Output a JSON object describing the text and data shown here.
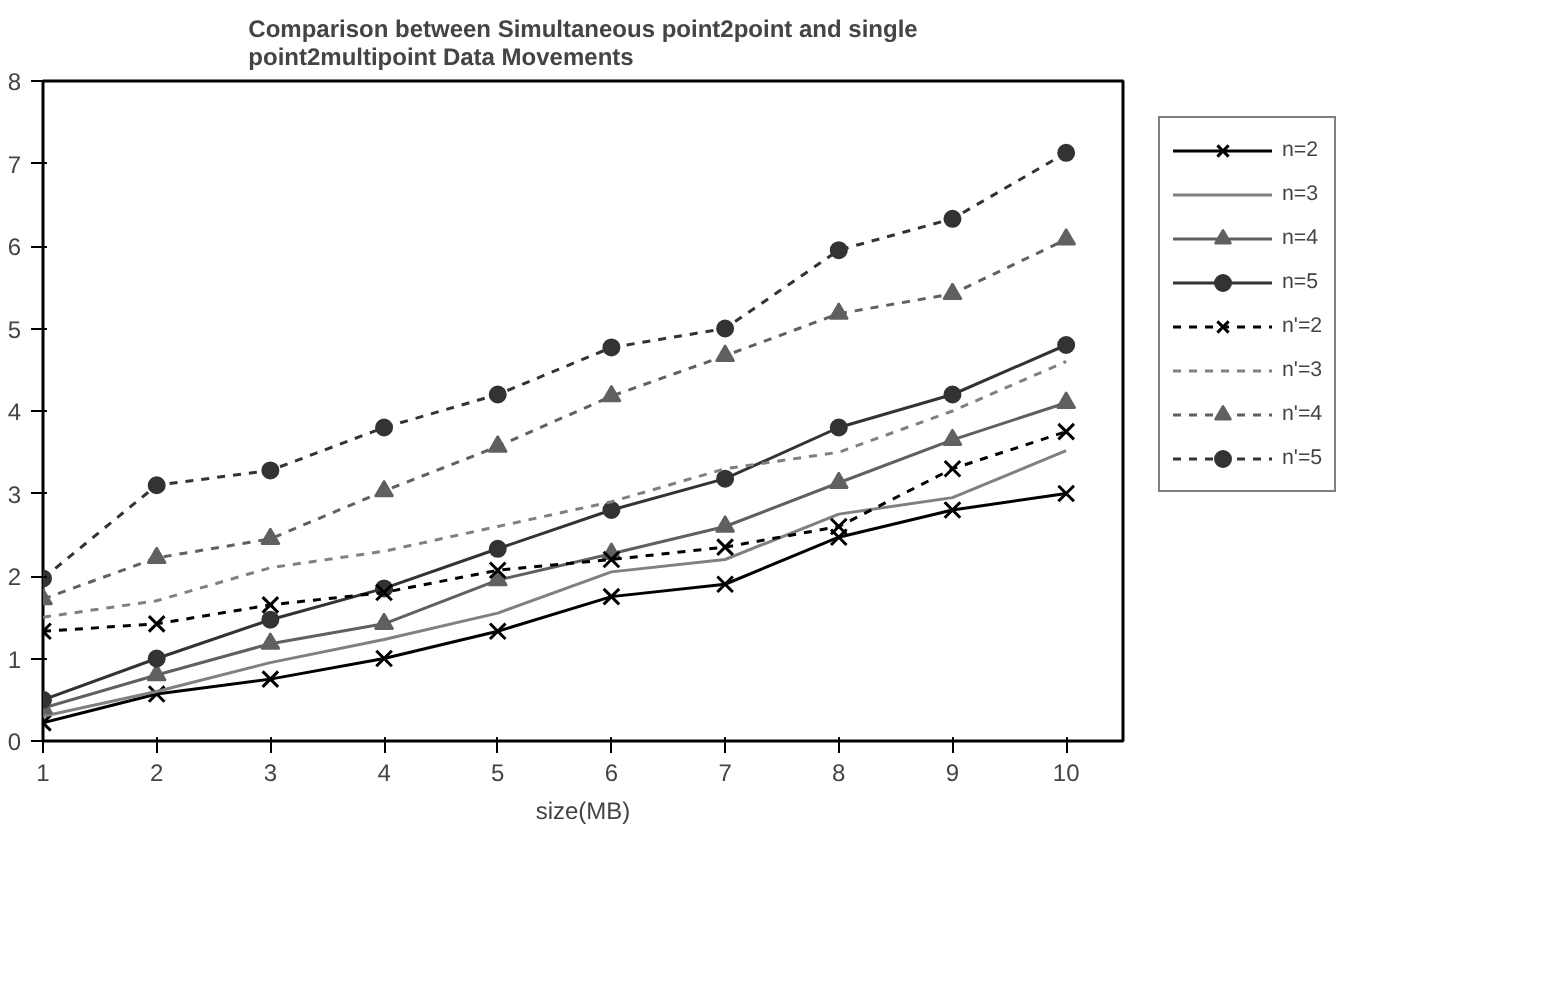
{
  "chart_data": {
    "type": "line",
    "title": "Comparison between Simultaneous point2point and single\npoint2multipoint Data Movements",
    "xlabel": "size(MB)",
    "x": [
      1,
      2,
      3,
      4,
      5,
      6,
      7,
      8,
      9,
      10
    ],
    "xlim": [
      1,
      10.5
    ],
    "xticks": [
      1,
      2,
      3,
      4,
      5,
      6,
      7,
      8,
      9,
      10
    ],
    "ylim": [
      0,
      8
    ],
    "yticks": [
      0,
      1,
      2,
      3,
      4,
      5,
      6,
      7,
      8
    ],
    "grid": false,
    "legend": "right",
    "series": [
      {
        "name": "n=2",
        "color": "#000000",
        "marker": "cross",
        "line_style": "solid",
        "values": [
          0.22,
          0.57,
          0.75,
          1.0,
          1.33,
          1.75,
          1.9,
          2.47,
          2.8,
          3.0
        ]
      },
      {
        "name": "n=3",
        "color": "#808080",
        "marker": "none",
        "line_style": "solid",
        "values": [
          0.3,
          0.6,
          0.95,
          1.23,
          1.55,
          2.05,
          2.2,
          2.75,
          2.95,
          3.52
        ]
      },
      {
        "name": "n=4",
        "color": "#606060",
        "marker": "triangle",
        "line_style": "solid",
        "values": [
          0.4,
          0.8,
          1.18,
          1.42,
          1.95,
          2.27,
          2.6,
          3.13,
          3.65,
          4.1
        ]
      },
      {
        "name": "n=5",
        "color": "#333333",
        "marker": "circle",
        "line_style": "solid",
        "values": [
          0.5,
          1.0,
          1.47,
          1.85,
          2.33,
          2.8,
          3.18,
          3.8,
          4.2,
          4.8
        ]
      },
      {
        "name": "n'=2",
        "color": "#000000",
        "marker": "cross",
        "line_style": "dashed",
        "values": [
          1.33,
          1.42,
          1.65,
          1.8,
          2.07,
          2.2,
          2.35,
          2.6,
          3.3,
          3.75
        ]
      },
      {
        "name": "n'=3",
        "color": "#808080",
        "marker": "none",
        "line_style": "dashed",
        "values": [
          1.5,
          1.7,
          2.1,
          2.3,
          2.6,
          2.9,
          3.3,
          3.5,
          4.0,
          4.6
        ]
      },
      {
        "name": "n'=4",
        "color": "#606060",
        "marker": "triangle",
        "line_style": "dashed",
        "values": [
          1.72,
          2.22,
          2.45,
          3.03,
          3.57,
          4.18,
          4.67,
          5.18,
          5.42,
          6.08
        ]
      },
      {
        "name": "n'=5",
        "color": "#333333",
        "marker": "circle",
        "line_style": "dashed",
        "values": [
          1.97,
          3.1,
          3.28,
          3.8,
          4.2,
          4.77,
          5.0,
          5.95,
          6.33,
          7.13
        ]
      }
    ]
  }
}
